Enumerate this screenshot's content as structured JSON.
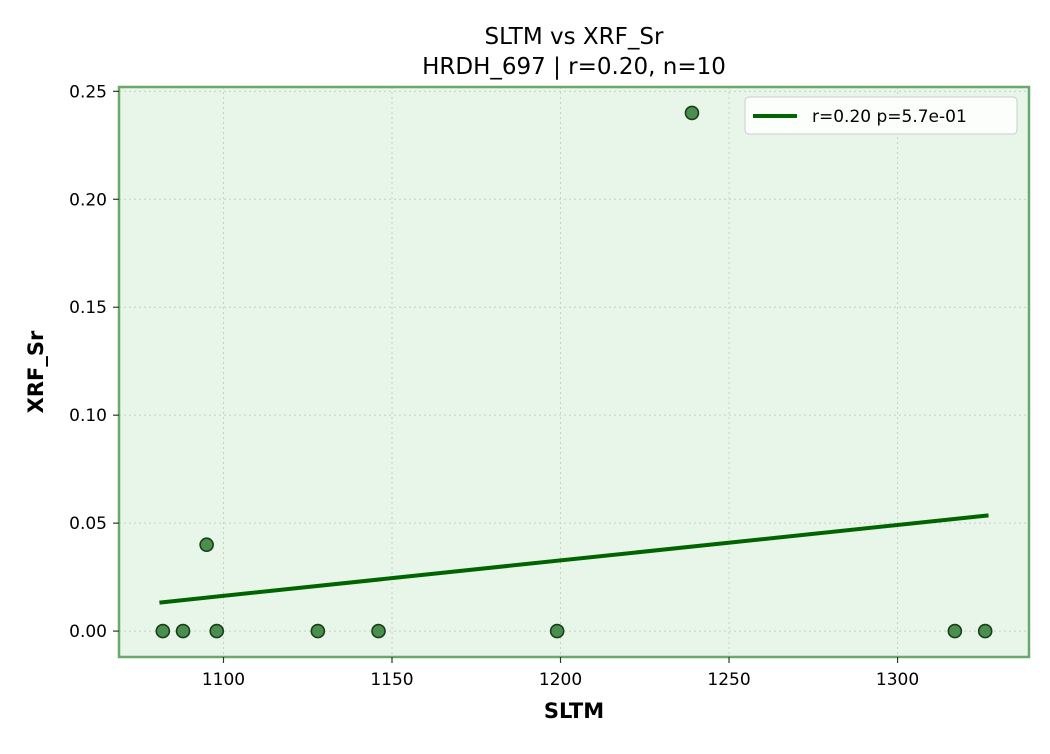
{
  "chart_data": {
    "type": "scatter",
    "title": "SLTM vs XRF_Sr",
    "subtitle": "HRDH_697 | r=0.20, n=10",
    "xlabel": "SLTM",
    "ylabel": "XRF_Sr",
    "xlim": [
      1069,
      1339
    ],
    "ylim": [
      -0.012,
      0.252
    ],
    "xticks": [
      1100,
      1150,
      1200,
      1250,
      1300
    ],
    "xtick_labels": [
      "1100",
      "1150",
      "1200",
      "1250",
      "1300"
    ],
    "yticks": [
      0.0,
      0.05,
      0.1,
      0.15,
      0.2,
      0.25
    ],
    "ytick_labels": [
      "0.00",
      "0.05",
      "0.10",
      "0.15",
      "0.20",
      "0.25"
    ],
    "grid": true,
    "legend_position": "top-right",
    "series": [
      {
        "kind": "points",
        "x": [
          1082,
          1088,
          1095,
          1098,
          1128,
          1146,
          1199,
          1239,
          1317,
          1326
        ],
        "y": [
          0.0,
          0.0,
          0.04,
          0.0,
          0.0,
          0.0,
          0.0,
          0.24,
          0.0,
          0.0
        ],
        "color": "#2e7d32"
      },
      {
        "kind": "fit-line",
        "name": "r=0.20  p=5.7e-01",
        "x": [
          1081,
          1327
        ],
        "y": [
          0.0132,
          0.0536
        ],
        "color": "#006400"
      }
    ],
    "colors": {
      "plot_background": "#e8f5e9",
      "plot_border": "#6aa86e",
      "grid": "#c8d0c8",
      "marker_edge": "#1b3d1b"
    }
  }
}
